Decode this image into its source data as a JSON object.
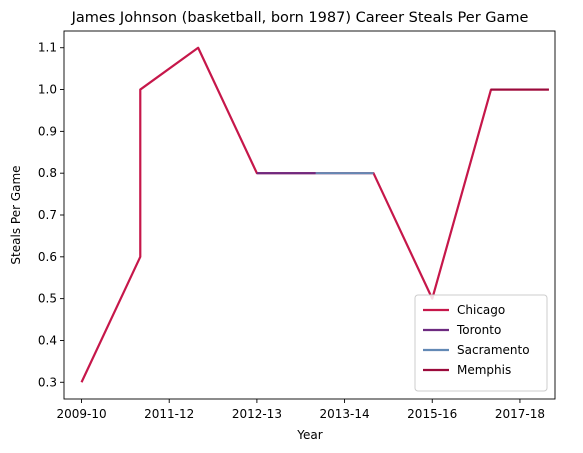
{
  "chart_data": {
    "type": "line",
    "title": "James Johnson (basketball, born 1987) Career Steals Per Game",
    "xlabel": "Year",
    "ylabel": "Steals Per Game",
    "x_tick_labels": [
      "2009-10",
      "2011-12",
      "2012-13",
      "2013-14",
      "2015-16",
      "2017-18"
    ],
    "y_ticks": [
      0.3,
      0.4,
      0.5,
      0.6,
      0.7,
      0.8,
      0.9,
      1.0,
      1.1
    ],
    "y_tick_labels": [
      "0.3",
      "0.4",
      "0.5",
      "0.6",
      "0.7",
      "0.8",
      "0.9",
      "1.0",
      "1.1"
    ],
    "xlim": [
      -0.2,
      5.4
    ],
    "ylim": [
      0.26,
      1.14
    ],
    "grid": false,
    "legend_position": "lower-right",
    "series": [
      {
        "name": "Chicago",
        "color": "#c6174a",
        "points": [
          {
            "x": 0,
            "y": 0.3
          },
          {
            "x": 0.67,
            "y": 0.6
          },
          {
            "x": 0.67,
            "y": 1.0
          },
          {
            "x": 1.33,
            "y": 1.1
          },
          {
            "x": 2,
            "y": 0.8
          },
          {
            "x": 3.33,
            "y": 0.8
          },
          {
            "x": 4,
            "y": 0.5
          },
          {
            "x": 4.67,
            "y": 1.0
          },
          {
            "x": 5.33,
            "y": 1.0
          }
        ]
      },
      {
        "name": "Toronto",
        "color": "#6d2a80",
        "points": [
          {
            "x": 2,
            "y": 0.8
          },
          {
            "x": 2.67,
            "y": 0.8
          }
        ]
      },
      {
        "name": "Sacramento",
        "color": "#6389b5",
        "points": [
          {
            "x": 2.67,
            "y": 0.8
          },
          {
            "x": 3.33,
            "y": 0.8
          }
        ]
      },
      {
        "name": "Memphis",
        "color": "#9b0a3b",
        "points": [
          {
            "x": 4.67,
            "y": 1.0
          },
          {
            "x": 5.33,
            "y": 1.0
          }
        ]
      }
    ]
  }
}
